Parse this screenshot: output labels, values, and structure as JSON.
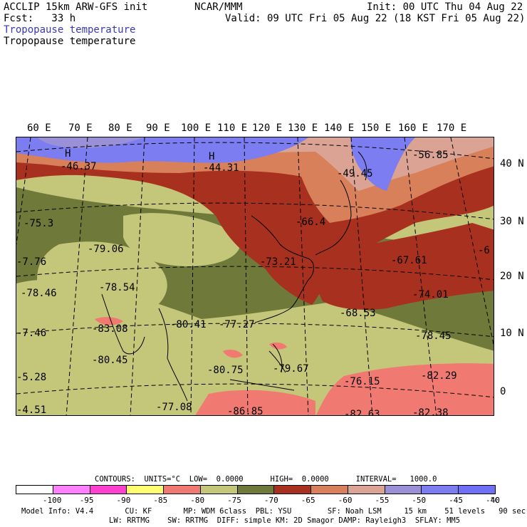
{
  "header": {
    "left1": "ACCLIP 15km ARW-GFS init",
    "left2": "Fcst:   33 h",
    "center": "NCAR/MMM",
    "right1": "Init: 00 UTC Thu 04 Aug 22",
    "right2": "Valid: 09 UTC Fri 05 Aug 22 (18 KST Fri 05 Aug 22)",
    "title_blue": "Tropopause temperature",
    "title_black": "Tropopause temperature"
  },
  "colors": {
    "title_blue": "#3a3ab0",
    "bands": [
      "#ffffff",
      "#ff80ff",
      "#ff3fcf",
      "#ffff70",
      "#f07a72",
      "#c4c67a",
      "#6f7a3a",
      "#a8301e",
      "#d8805a",
      "#dba393",
      "#9a90d8",
      "#7b7df0",
      "#7070f5"
    ]
  },
  "lon_labels": [
    "60 E",
    "70 E",
    "80 E",
    "90 E",
    "100 E",
    "110 E",
    "120 E",
    "130 E",
    "140 E",
    "150 E",
    "160 E",
    "170 E"
  ],
  "lat_labels": [
    "40 N",
    "30 N",
    "20 N",
    "10 N",
    "0"
  ],
  "map_labels": [
    {
      "name": "h-nw-mark",
      "text": "H"
    },
    {
      "name": "value-nw",
      "text": "-46.37"
    },
    {
      "name": "h-n-mark",
      "text": "H"
    },
    {
      "name": "value-n",
      "text": "-44.31"
    },
    {
      "name": "value-ne",
      "text": "-56.85"
    },
    {
      "name": "value-japan",
      "text": "-49.45"
    },
    {
      "name": "value-w1",
      "text": "-75.3"
    },
    {
      "name": "value-korea",
      "text": "-66.4"
    },
    {
      "name": "value-w2",
      "text": "-79.06"
    },
    {
      "name": "value-china",
      "text": "-73.21"
    },
    {
      "name": "value-pac1",
      "text": "-67.61"
    },
    {
      "name": "value-w3",
      "text": "-78.54"
    },
    {
      "name": "value-w4",
      "text": "-78.46"
    },
    {
      "name": "value-w5",
      "text": "-7.76"
    },
    {
      "name": "value-pac2",
      "text": "-74.01"
    },
    {
      "name": "value-taiwan",
      "text": "-68.53"
    },
    {
      "name": "value-india1",
      "text": "-83.08"
    },
    {
      "name": "value-indo1",
      "text": "-80.41"
    },
    {
      "name": "value-scs",
      "text": "-77.27"
    },
    {
      "name": "value-w6",
      "text": "-7.46"
    },
    {
      "name": "value-pac3",
      "text": "-78.45"
    },
    {
      "name": "value-india2",
      "text": "-80.45"
    },
    {
      "name": "value-indo2",
      "text": "-80.75"
    },
    {
      "name": "value-phil",
      "text": "-79.67"
    },
    {
      "name": "value-pac4",
      "text": "-76.15"
    },
    {
      "name": "value-pac5",
      "text": "-82.29"
    },
    {
      "name": "value-w7",
      "text": "-5.28"
    },
    {
      "name": "value-sw",
      "text": "-77.08"
    },
    {
      "name": "value-s1",
      "text": "-86.85"
    },
    {
      "name": "value-s2",
      "text": "-82.63"
    },
    {
      "name": "value-s3",
      "text": "-82.38"
    },
    {
      "name": "value-w8",
      "text": "-4.51"
    },
    {
      "name": "value-ne2",
      "text": "-6"
    }
  ],
  "footer": {
    "contours": "CONTOURS:  UNITS=°C  LOW=  0.0000      HIGH=  0.0000      INTERVAL=   1000.0",
    "ticks": [
      "-100",
      "-95",
      "-90",
      "-85",
      "-80",
      "-75",
      "-70",
      "-65",
      "-60",
      "-55",
      "-50",
      "-45",
      "-40",
      "°C"
    ],
    "info1": "Model Info: V4.4       CU: KF       MP: WDM 6class  PBL: YSU        SF: Noah LSM     15 km    51 levels   90 sec",
    "info2": "LW: RRTMG    SW: RRTMG  DIFF: simple KM: 2D Smagor DAMP: Rayleigh3  SFLAY: MM5"
  }
}
